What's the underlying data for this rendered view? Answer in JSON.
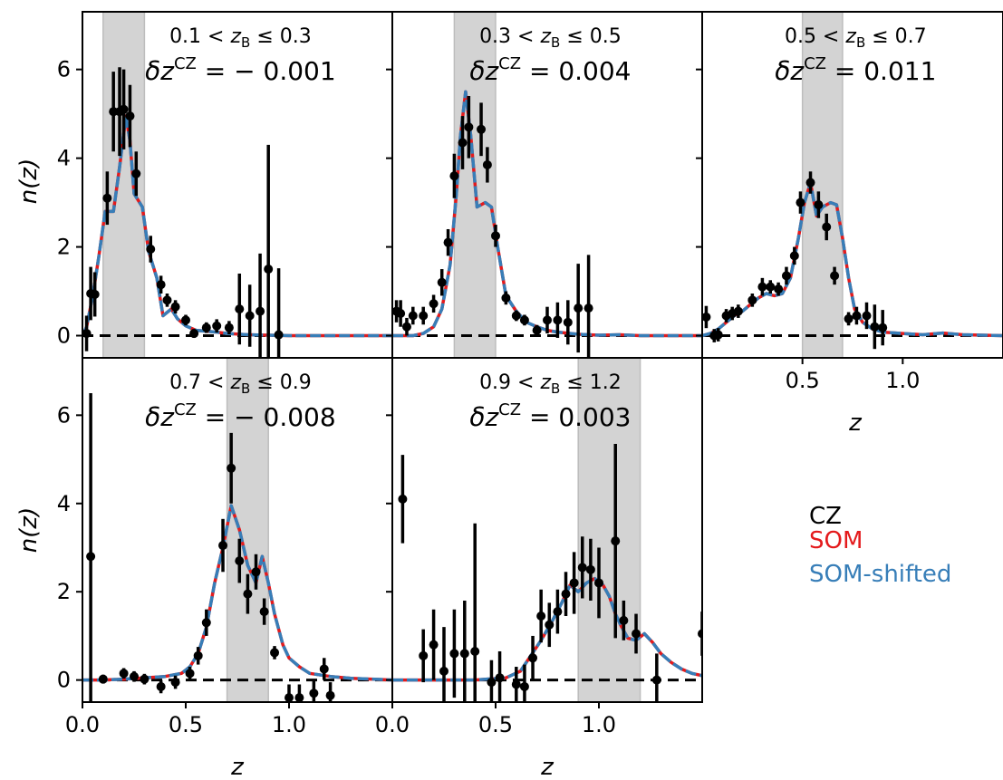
{
  "chart_data": {
    "type": "line",
    "xlabel": "z",
    "ylabel": "n(z)",
    "xlim": [
      0.0,
      1.5
    ],
    "ylim": [
      -0.5,
      7.3
    ],
    "xticks": [
      "0.0",
      "0.5",
      "1.0"
    ],
    "yticks": [
      "0",
      "2",
      "4",
      "6"
    ],
    "legend": {
      "placement": "empty lower-right cell",
      "entries": [
        {
          "label": "CZ",
          "color": "#000000"
        },
        {
          "label": "SOM",
          "color": "#e41a1c"
        },
        {
          "label": "SOM-shifted",
          "color": "#377eb8"
        }
      ]
    },
    "panels": [
      {
        "bin_prefix": "0.1 < ",
        "bin_suffix": " ≤ 0.3",
        "bin_var": "z",
        "bin_sub": "B",
        "shift_var": "δz",
        "shift_sup": "CZ",
        "shift_value": " = − 0.001",
        "band": [
          0.1,
          0.3
        ],
        "som": [
          [
            0.0,
            0.0
          ],
          [
            0.02,
            0.2
          ],
          [
            0.05,
            0.9
          ],
          [
            0.08,
            1.8
          ],
          [
            0.11,
            2.8
          ],
          [
            0.15,
            2.8
          ],
          [
            0.18,
            3.8
          ],
          [
            0.21,
            4.95
          ],
          [
            0.23,
            4.4
          ],
          [
            0.25,
            3.2
          ],
          [
            0.29,
            2.9
          ],
          [
            0.32,
            1.9
          ],
          [
            0.36,
            1.3
          ],
          [
            0.39,
            0.45
          ],
          [
            0.43,
            0.6
          ],
          [
            0.46,
            0.38
          ],
          [
            0.5,
            0.22
          ],
          [
            0.55,
            0.12
          ],
          [
            0.6,
            0.1
          ],
          [
            0.65,
            0.08
          ],
          [
            0.7,
            0.05
          ],
          [
            0.8,
            0.02
          ],
          [
            0.9,
            0.01
          ],
          [
            1.0,
            0.0
          ],
          [
            1.2,
            0.0
          ],
          [
            1.5,
            0.0
          ]
        ],
        "cz": [
          [
            0.02,
            0.05,
            0.4
          ],
          [
            0.04,
            0.95,
            0.6
          ],
          [
            0.06,
            0.93,
            0.5
          ],
          [
            0.12,
            3.1,
            0.6
          ],
          [
            0.15,
            5.05,
            0.9
          ],
          [
            0.18,
            5.05,
            1.0
          ],
          [
            0.2,
            5.1,
            0.9
          ],
          [
            0.23,
            4.95,
            0.7
          ],
          [
            0.26,
            3.65,
            0.5
          ],
          [
            0.33,
            1.95,
            0.3
          ],
          [
            0.38,
            1.15,
            0.2
          ],
          [
            0.41,
            0.8,
            0.15
          ],
          [
            0.45,
            0.65,
            0.15
          ],
          [
            0.5,
            0.35,
            0.12
          ],
          [
            0.54,
            0.05,
            0.1
          ],
          [
            0.6,
            0.18,
            0.12
          ],
          [
            0.65,
            0.22,
            0.15
          ],
          [
            0.71,
            0.18,
            0.15
          ],
          [
            0.76,
            0.6,
            0.8
          ],
          [
            0.81,
            0.45,
            0.7
          ],
          [
            0.86,
            0.55,
            1.3
          ],
          [
            0.9,
            1.5,
            2.8
          ],
          [
            0.95,
            0.02,
            1.5
          ]
        ]
      },
      {
        "bin_prefix": "0.3 < ",
        "bin_suffix": " ≤ 0.5",
        "bin_var": "z",
        "bin_sub": "B",
        "shift_var": "δz",
        "shift_sup": "CZ",
        "shift_value": " = 0.004",
        "band": [
          0.3,
          0.5
        ],
        "som": [
          [
            0.0,
            0.0
          ],
          [
            0.1,
            0.0
          ],
          [
            0.15,
            0.05
          ],
          [
            0.2,
            0.2
          ],
          [
            0.24,
            0.6
          ],
          [
            0.28,
            1.6
          ],
          [
            0.31,
            3.2
          ],
          [
            0.33,
            4.5
          ],
          [
            0.355,
            5.5
          ],
          [
            0.38,
            4.5
          ],
          [
            0.41,
            2.9
          ],
          [
            0.45,
            3.0
          ],
          [
            0.48,
            2.9
          ],
          [
            0.51,
            2.0
          ],
          [
            0.55,
            0.9
          ],
          [
            0.6,
            0.55
          ],
          [
            0.65,
            0.3
          ],
          [
            0.7,
            0.2
          ],
          [
            0.75,
            0.12
          ],
          [
            0.8,
            0.08
          ],
          [
            0.9,
            0.03
          ],
          [
            1.0,
            0.01
          ],
          [
            1.1,
            0.02
          ],
          [
            1.2,
            0.0
          ],
          [
            1.5,
            0.0
          ]
        ],
        "cz": [
          [
            0.02,
            0.55,
            0.25
          ],
          [
            0.04,
            0.5,
            0.3
          ],
          [
            0.07,
            0.2,
            0.2
          ],
          [
            0.1,
            0.45,
            0.2
          ],
          [
            0.15,
            0.45,
            0.2
          ],
          [
            0.2,
            0.72,
            0.2
          ],
          [
            0.24,
            1.2,
            0.3
          ],
          [
            0.27,
            2.1,
            0.3
          ],
          [
            0.3,
            3.6,
            0.5
          ],
          [
            0.34,
            4.35,
            0.6
          ],
          [
            0.37,
            4.7,
            0.7
          ],
          [
            0.43,
            4.65,
            0.6
          ],
          [
            0.46,
            3.85,
            0.4
          ],
          [
            0.5,
            2.25,
            0.25
          ],
          [
            0.55,
            0.85,
            0.15
          ],
          [
            0.6,
            0.45,
            0.12
          ],
          [
            0.64,
            0.35,
            0.12
          ],
          [
            0.7,
            0.12,
            0.12
          ],
          [
            0.75,
            0.35,
            0.3
          ],
          [
            0.8,
            0.35,
            0.4
          ],
          [
            0.85,
            0.3,
            0.5
          ],
          [
            0.9,
            0.62,
            1.0
          ],
          [
            0.95,
            0.62,
            1.2
          ]
        ]
      },
      {
        "bin_prefix": "0.5 < ",
        "bin_suffix": " ≤ 0.7",
        "bin_var": "z",
        "bin_sub": "B",
        "shift_var": "δz",
        "shift_sup": "CZ",
        "shift_value": " = 0.011",
        "band": [
          0.5,
          0.7
        ],
        "som": [
          [
            0.0,
            0.0
          ],
          [
            0.04,
            0.05
          ],
          [
            0.08,
            0.15
          ],
          [
            0.12,
            0.3
          ],
          [
            0.16,
            0.45
          ],
          [
            0.2,
            0.55
          ],
          [
            0.24,
            0.7
          ],
          [
            0.28,
            0.85
          ],
          [
            0.32,
            0.95
          ],
          [
            0.36,
            0.9
          ],
          [
            0.4,
            0.95
          ],
          [
            0.44,
            1.3
          ],
          [
            0.48,
            2.2
          ],
          [
            0.51,
            3.0
          ],
          [
            0.54,
            3.45
          ],
          [
            0.57,
            2.7
          ],
          [
            0.6,
            2.9
          ],
          [
            0.64,
            3.0
          ],
          [
            0.67,
            2.95
          ],
          [
            0.7,
            2.2
          ],
          [
            0.73,
            1.3
          ],
          [
            0.76,
            0.6
          ],
          [
            0.8,
            0.3
          ],
          [
            0.85,
            0.15
          ],
          [
            0.9,
            0.08
          ],
          [
            1.0,
            0.05
          ],
          [
            1.1,
            0.02
          ],
          [
            1.2,
            0.06
          ],
          [
            1.3,
            0.02
          ],
          [
            1.5,
            0.0
          ]
        ],
        "cz": [
          [
            0.02,
            0.42,
            0.25
          ],
          [
            0.06,
            0.0,
            0.15
          ],
          [
            0.08,
            0.02,
            0.15
          ],
          [
            0.12,
            0.45,
            0.15
          ],
          [
            0.15,
            0.5,
            0.15
          ],
          [
            0.18,
            0.55,
            0.15
          ],
          [
            0.25,
            0.8,
            0.15
          ],
          [
            0.3,
            1.1,
            0.2
          ],
          [
            0.34,
            1.1,
            0.15
          ],
          [
            0.38,
            1.05,
            0.15
          ],
          [
            0.42,
            1.35,
            0.2
          ],
          [
            0.46,
            1.8,
            0.2
          ],
          [
            0.49,
            3.0,
            0.25
          ],
          [
            0.54,
            3.45,
            0.25
          ],
          [
            0.58,
            2.95,
            0.3
          ],
          [
            0.62,
            2.45,
            0.3
          ],
          [
            0.66,
            1.35,
            0.2
          ],
          [
            0.73,
            0.38,
            0.15
          ],
          [
            0.77,
            0.45,
            0.2
          ],
          [
            0.82,
            0.45,
            0.3
          ],
          [
            0.86,
            0.2,
            0.5
          ],
          [
            0.9,
            0.18,
            0.4
          ]
        ]
      },
      {
        "bin_prefix": "0.7 < ",
        "bin_suffix": " ≤ 0.9",
        "bin_var": "z",
        "bin_sub": "B",
        "shift_var": "δz",
        "shift_sup": "CZ",
        "shift_value": " = − 0.008",
        "band": [
          0.7,
          0.9
        ],
        "som": [
          [
            0.0,
            0.0
          ],
          [
            0.1,
            0.0
          ],
          [
            0.2,
            0.02
          ],
          [
            0.3,
            0.05
          ],
          [
            0.4,
            0.08
          ],
          [
            0.48,
            0.15
          ],
          [
            0.52,
            0.3
          ],
          [
            0.56,
            0.6
          ],
          [
            0.6,
            1.2
          ],
          [
            0.64,
            2.2
          ],
          [
            0.68,
            3.0
          ],
          [
            0.72,
            3.95
          ],
          [
            0.76,
            3.4
          ],
          [
            0.8,
            2.6
          ],
          [
            0.84,
            2.2
          ],
          [
            0.87,
            2.8
          ],
          [
            0.9,
            2.2
          ],
          [
            0.93,
            1.5
          ],
          [
            0.97,
            0.8
          ],
          [
            1.0,
            0.5
          ],
          [
            1.05,
            0.3
          ],
          [
            1.1,
            0.15
          ],
          [
            1.2,
            0.08
          ],
          [
            1.3,
            0.04
          ],
          [
            1.5,
            0.0
          ]
        ],
        "cz": [
          [
            0.04,
            2.8,
            3.7
          ],
          [
            0.1,
            0.02,
            0.1
          ],
          [
            0.2,
            0.15,
            0.12
          ],
          [
            0.25,
            0.08,
            0.12
          ],
          [
            0.3,
            0.02,
            0.12
          ],
          [
            0.38,
            -0.15,
            0.15
          ],
          [
            0.45,
            -0.05,
            0.15
          ],
          [
            0.52,
            0.15,
            0.15
          ],
          [
            0.56,
            0.55,
            0.2
          ],
          [
            0.6,
            1.3,
            0.3
          ],
          [
            0.68,
            3.05,
            0.6
          ],
          [
            0.72,
            4.8,
            0.8
          ],
          [
            0.76,
            2.7,
            0.5
          ],
          [
            0.8,
            1.95,
            0.45
          ],
          [
            0.84,
            2.45,
            0.4
          ],
          [
            0.88,
            1.55,
            0.3
          ],
          [
            0.93,
            0.62,
            0.15
          ],
          [
            1.0,
            -0.4,
            0.3
          ],
          [
            1.05,
            -0.4,
            0.3
          ],
          [
            1.12,
            -0.3,
            0.3
          ],
          [
            1.17,
            0.25,
            0.25
          ],
          [
            1.2,
            -0.35,
            0.3
          ]
        ]
      },
      {
        "bin_prefix": "0.9 < ",
        "bin_suffix": " ≤ 1.2",
        "bin_var": "z",
        "bin_sub": "B",
        "shift_var": "δz",
        "shift_sup": "CZ",
        "shift_value": " = 0.003",
        "band": [
          0.9,
          1.2
        ],
        "som": [
          [
            0.0,
            0.0
          ],
          [
            0.2,
            0.0
          ],
          [
            0.4,
            0.0
          ],
          [
            0.55,
            0.05
          ],
          [
            0.62,
            0.2
          ],
          [
            0.67,
            0.55
          ],
          [
            0.72,
            0.9
          ],
          [
            0.77,
            1.3
          ],
          [
            0.82,
            1.75
          ],
          [
            0.86,
            2.15
          ],
          [
            0.9,
            2.0
          ],
          [
            0.94,
            2.2
          ],
          [
            0.98,
            2.3
          ],
          [
            1.02,
            2.15
          ],
          [
            1.05,
            1.9
          ],
          [
            1.08,
            1.5
          ],
          [
            1.11,
            1.2
          ],
          [
            1.14,
            0.95
          ],
          [
            1.18,
            0.9
          ],
          [
            1.22,
            1.05
          ],
          [
            1.26,
            0.85
          ],
          [
            1.3,
            0.6
          ],
          [
            1.35,
            0.4
          ],
          [
            1.4,
            0.25
          ],
          [
            1.45,
            0.15
          ],
          [
            1.5,
            0.1
          ]
        ],
        "cz": [
          [
            0.05,
            4.1,
            1.0
          ],
          [
            0.15,
            0.55,
            0.6
          ],
          [
            0.2,
            0.8,
            0.8
          ],
          [
            0.25,
            0.2,
            1.0
          ],
          [
            0.3,
            0.6,
            1.0
          ],
          [
            0.35,
            0.6,
            1.2
          ],
          [
            0.4,
            0.65,
            2.9
          ],
          [
            0.48,
            -0.05,
            0.5
          ],
          [
            0.52,
            0.05,
            0.6
          ],
          [
            0.6,
            -0.1,
            0.4
          ],
          [
            0.64,
            -0.15,
            0.5
          ],
          [
            0.68,
            0.5,
            0.5
          ],
          [
            0.72,
            1.45,
            0.6
          ],
          [
            0.76,
            1.25,
            0.5
          ],
          [
            0.8,
            1.55,
            0.5
          ],
          [
            0.84,
            1.95,
            0.5
          ],
          [
            0.88,
            2.2,
            0.7
          ],
          [
            0.92,
            2.55,
            0.7
          ],
          [
            0.96,
            2.5,
            0.7
          ],
          [
            1.0,
            2.2,
            0.8
          ],
          [
            1.08,
            3.15,
            2.2
          ],
          [
            1.12,
            1.35,
            0.45
          ],
          [
            1.18,
            1.05,
            0.45
          ],
          [
            1.28,
            0.0,
            0.6
          ],
          [
            1.5,
            1.05,
            0.5
          ]
        ]
      }
    ]
  }
}
